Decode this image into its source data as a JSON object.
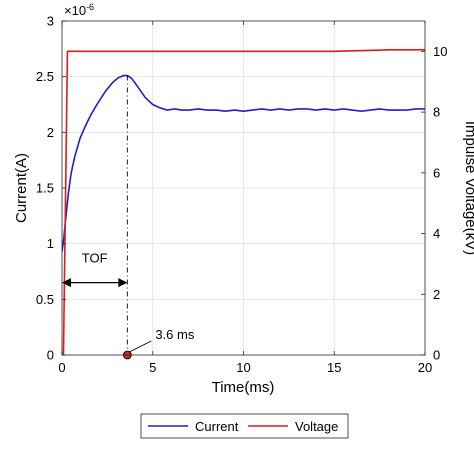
{
  "chart_data": {
    "type": "line",
    "xlabel": "Time(ms)",
    "ylabel_left": "Current(A)",
    "ylabel_right": "Impulse Voltage(kV)",
    "exponent_label_base": "×10",
    "exponent_label_power": "-6",
    "xlim": [
      0,
      20
    ],
    "ylim_left": [
      0,
      3
    ],
    "ylim_right": [
      0,
      11
    ],
    "x_ticks": [
      0,
      5,
      10,
      15,
      20
    ],
    "y_ticks_left": [
      0,
      0.5,
      1,
      1.5,
      2,
      2.5,
      3
    ],
    "y_ticks_right": [
      0,
      2,
      4,
      6,
      8,
      10
    ],
    "grid": true,
    "legend_placement": "bottom-outside",
    "series": [
      {
        "name": "Current",
        "axis": "left",
        "color": "#1f1fcc",
        "x": [
          0.0,
          0.1,
          0.2,
          0.35,
          0.5,
          0.7,
          1.0,
          1.3,
          1.6,
          2.0,
          2.4,
          2.8,
          3.1,
          3.4,
          3.6,
          3.8,
          4.0,
          4.3,
          4.6,
          5.0,
          5.4,
          5.8,
          6.2,
          6.6,
          7.0,
          7.5,
          8.0,
          8.5,
          9.0,
          9.5,
          10.0,
          10.5,
          11.0,
          11.5,
          12.0,
          12.5,
          13.0,
          13.5,
          14.0,
          14.5,
          15.0,
          15.5,
          16.0,
          16.5,
          17.0,
          17.5,
          18.0,
          18.5,
          19.0,
          19.5,
          20.0
        ],
        "values": [
          0.93,
          1.05,
          1.22,
          1.45,
          1.63,
          1.78,
          1.95,
          2.06,
          2.16,
          2.27,
          2.37,
          2.45,
          2.49,
          2.51,
          2.51,
          2.49,
          2.45,
          2.38,
          2.31,
          2.25,
          2.22,
          2.2,
          2.21,
          2.2,
          2.2,
          2.21,
          2.2,
          2.2,
          2.19,
          2.2,
          2.19,
          2.2,
          2.21,
          2.2,
          2.21,
          2.2,
          2.21,
          2.21,
          2.2,
          2.21,
          2.2,
          2.21,
          2.2,
          2.19,
          2.2,
          2.21,
          2.2,
          2.2,
          2.2,
          2.21,
          2.21
        ]
      },
      {
        "name": "Voltage",
        "axis": "right",
        "color": "#dd1c1c",
        "x": [
          0.0,
          0.08,
          0.3,
          0.5,
          2.0,
          5.0,
          10.0,
          15.0,
          18.0,
          20.0
        ],
        "values": [
          0.0,
          0.0,
          10.0,
          10.0,
          10.0,
          10.0,
          10.0,
          10.0,
          10.05,
          10.05
        ]
      }
    ],
    "annotations": {
      "tof_label": "TOF",
      "tof_start_ms": 0.0,
      "tof_end_ms": 3.6,
      "tof_arrow_current": 0.65,
      "marker_label": "3.6 ms",
      "marker_x_ms": 3.6,
      "marker_y": 0,
      "marker_color": "#c8252a",
      "peak_current": 2.51
    }
  }
}
